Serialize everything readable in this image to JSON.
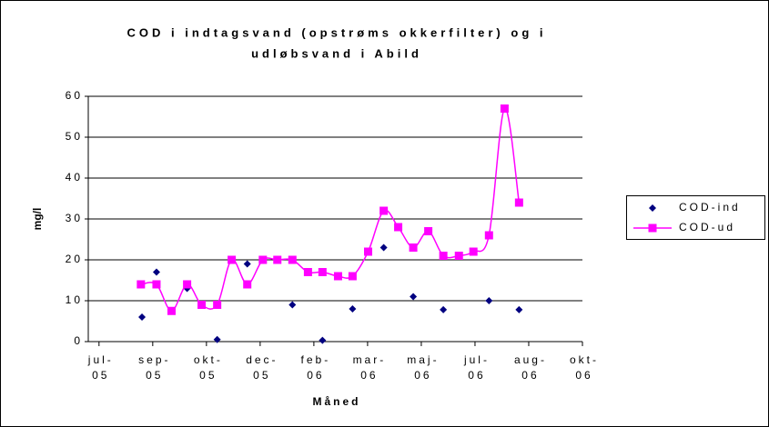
{
  "chart_data": {
    "type": "line",
    "title_lines": [
      "COD i indtagsvand (opstrøms okkerfilter) og i",
      "udløbsvand i Abild"
    ],
    "x_label": "Måned",
    "y_label": "mg/l",
    "xlim": [
      -0.2,
      9
    ],
    "xticks": [
      {
        "value": 0,
        "label": "jul-05"
      },
      {
        "value": 1,
        "label": "sep-05"
      },
      {
        "value": 2,
        "label": "okt-05"
      },
      {
        "value": 3,
        "label": "dec-05"
      },
      {
        "value": 4,
        "label": "feb-06"
      },
      {
        "value": 5,
        "label": "mar-06"
      },
      {
        "value": 6,
        "label": "maj-06"
      },
      {
        "value": 7,
        "label": "jul-06"
      },
      {
        "value": 8,
        "label": "aug-06"
      },
      {
        "value": 9,
        "label": "okt-06"
      }
    ],
    "ylim": [
      0,
      60
    ],
    "yticks": [
      0,
      10,
      20,
      30,
      40,
      50,
      60
    ],
    "grid": true,
    "legend": "right",
    "series": [
      {
        "name": "COD-ind",
        "color": "#000080",
        "marker": "diamond",
        "line": false,
        "x": [
          0.8,
          1.07,
          1.64,
          2.2,
          2.76,
          3.6,
          4.16,
          4.72,
          5.3,
          5.85,
          6.41,
          7.26,
          7.82
        ],
        "values": [
          6,
          17,
          13,
          0.5,
          19,
          9,
          0.3,
          8,
          23,
          11,
          7.8,
          10,
          7.8
        ]
      },
      {
        "name": "COD-ud",
        "color": "#ff00ff",
        "marker": "square",
        "line": true,
        "x": [
          0.78,
          1.07,
          1.35,
          1.64,
          1.91,
          2.2,
          2.47,
          2.76,
          3.05,
          3.32,
          3.6,
          3.89,
          4.16,
          4.45,
          4.72,
          5.01,
          5.3,
          5.57,
          5.85,
          6.13,
          6.41,
          6.7,
          6.97,
          7.26,
          7.55,
          7.82
        ],
        "values": [
          14,
          14,
          7.5,
          14,
          9,
          9,
          20,
          14,
          20,
          20,
          20,
          17,
          17,
          16,
          16,
          22,
          32,
          28,
          23,
          27,
          21,
          21,
          22,
          26,
          57,
          34
        ]
      }
    ]
  }
}
